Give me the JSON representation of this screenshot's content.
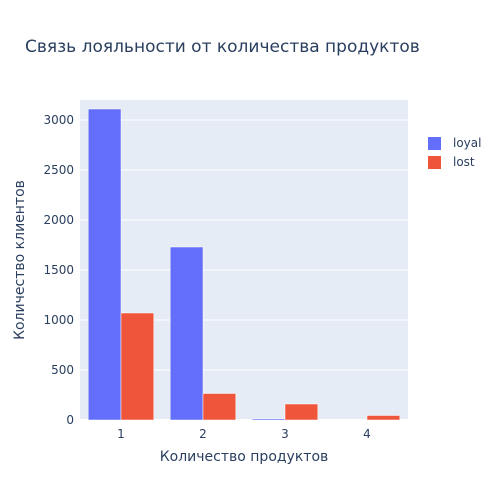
{
  "chart_data": {
    "type": "bar",
    "title": "Связь лояльности от количества продуктов",
    "xlabel": "Количество продуктов",
    "ylabel": "Количество клиентов",
    "categories": [
      "1",
      "2",
      "3",
      "4"
    ],
    "series": [
      {
        "name": "loyal",
        "color": "#636efa",
        "values": [
          3110,
          1730,
          12,
          0
        ]
      },
      {
        "name": "lost",
        "color": "#ef553b",
        "values": [
          1070,
          265,
          160,
          45
        ]
      }
    ],
    "ylim": [
      0,
      3200
    ],
    "yticks": [
      0,
      500,
      1000,
      1500,
      2000,
      2500,
      3000
    ],
    "grid": true,
    "legend_position": "top-right",
    "plot_background": "#e5ecf6"
  }
}
